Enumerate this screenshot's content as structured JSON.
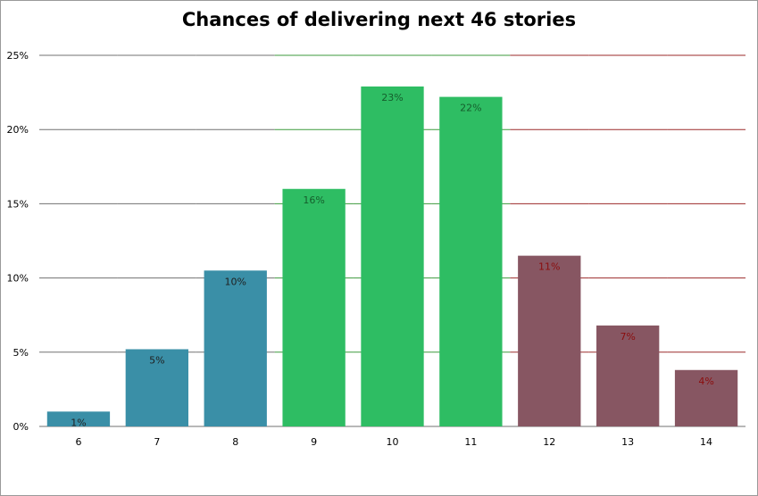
{
  "chart_data": {
    "type": "bar",
    "title": "Chances of delivering next 46 stories",
    "xlabel": "",
    "ylabel": "",
    "categories": [
      "6",
      "7",
      "8",
      "9",
      "10",
      "11",
      "12",
      "13",
      "14"
    ],
    "values": [
      1,
      5.2,
      10.5,
      16,
      22.9,
      22.2,
      11.5,
      6.8,
      3.8
    ],
    "data_labels": [
      "1%",
      "5%",
      "10%",
      "16%",
      "23%",
      "22%",
      "11%",
      "7%",
      "4%"
    ],
    "bar_colors": [
      "#3a8fa7",
      "#3a8fa7",
      "#3a8fa7",
      "#2ebd63",
      "#2ebd63",
      "#2ebd63",
      "#875662",
      "#875662",
      "#875662"
    ],
    "label_colors": [
      "#1f1f1f",
      "#1f1f1f",
      "#1f1f1f",
      "#155e2c",
      "#155e2c",
      "#155e2c",
      "#8b0d0d",
      "#8b0d0d",
      "#8b0d0d"
    ],
    "gridline_colors": {
      "blue_zone": "#707070",
      "green_zone": "#3c9a3c",
      "red_zone": "#9b2a2a"
    },
    "ylim": [
      0,
      25
    ],
    "yticks": [
      0,
      5,
      10,
      15,
      20,
      25
    ],
    "ytick_labels": [
      "0%",
      "5%",
      "10%",
      "15%",
      "20%",
      "25%"
    ],
    "grid": true,
    "legend": "none"
  }
}
